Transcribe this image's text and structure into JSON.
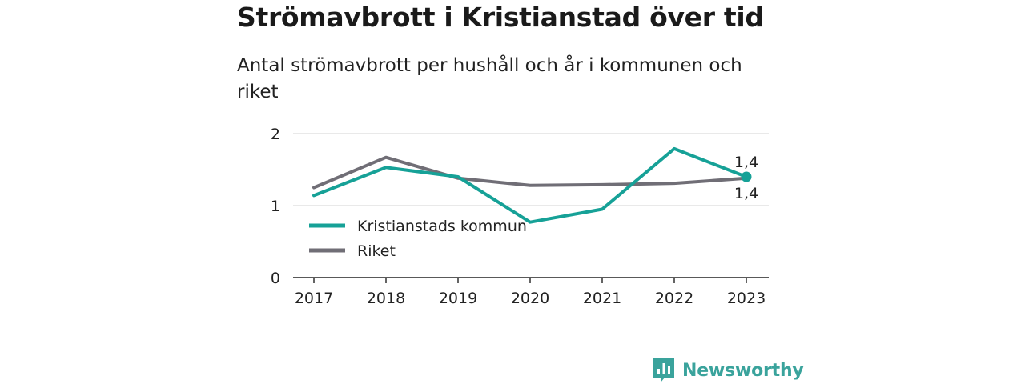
{
  "header": {
    "title": "Strömavbrott i Kristianstad över tid",
    "subtitle": "Antal strömavbrott per hushåll och år i kommunen och riket"
  },
  "brand": {
    "name": "Newsworthy",
    "icon": "bar-chart-speech-bubble-icon",
    "color": "#3aa39c"
  },
  "chart_data": {
    "type": "line",
    "title": "Strömavbrott i Kristianstad över tid",
    "subtitle": "Antal strömavbrott per hushåll och år i kommunen och riket",
    "xlabel": "",
    "ylabel": "",
    "x": [
      "2017",
      "2018",
      "2019",
      "2020",
      "2021",
      "2022",
      "2023"
    ],
    "ylim": [
      0,
      2
    ],
    "yticks": [
      "0",
      "1",
      "2"
    ],
    "grid": true,
    "legend_position": "bottom-left",
    "series": [
      {
        "name": "Kristianstads kommun",
        "color": "#16a197",
        "values": [
          1.14,
          1.53,
          1.4,
          0.77,
          0.95,
          1.79,
          1.4
        ]
      },
      {
        "name": "Riket",
        "color": "#706e76",
        "values": [
          1.25,
          1.67,
          1.38,
          1.28,
          1.29,
          1.31,
          1.38
        ]
      }
    ],
    "annotations": [
      {
        "series": "Kristianstads kommun",
        "x": "2023",
        "label": "1,4"
      },
      {
        "series": "Riket",
        "x": "2023",
        "label": "1,4"
      }
    ]
  }
}
